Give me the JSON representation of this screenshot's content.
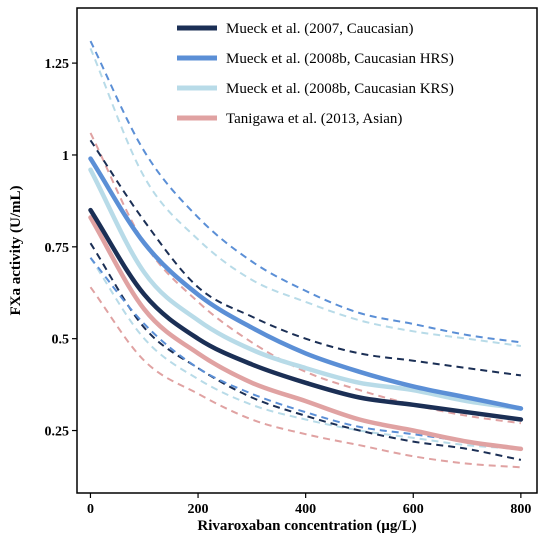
{
  "chart_data": {
    "type": "line",
    "title": "",
    "xlabel": "Rivaroxaban concentration (µg/L)",
    "ylabel": "FXa activity (U/mL)",
    "xlim": [
      -25,
      830
    ],
    "ylim": [
      0.08,
      1.4
    ],
    "xticks": [
      0,
      200,
      400,
      600,
      800
    ],
    "xtick_labels": [
      "0",
      "200",
      "400",
      "600",
      "800"
    ],
    "yticks": [
      0.25,
      0.5,
      0.75,
      1.0,
      1.25
    ],
    "ytick_labels": [
      "0.25",
      "0.5",
      "0.75",
      "1",
      "1.25"
    ],
    "grid": false,
    "legend_position": "top-right",
    "x": [
      0,
      100,
      200,
      300,
      400,
      500,
      600,
      700,
      800
    ],
    "series": [
      {
        "name": "Mueck et al. (2007, Caucasian)",
        "color": "#1b2f55",
        "values": [
          0.85,
          0.62,
          0.5,
          0.43,
          0.38,
          0.34,
          0.32,
          0.3,
          0.28
        ],
        "lower": [
          0.76,
          0.53,
          0.42,
          0.34,
          0.29,
          0.25,
          0.22,
          0.2,
          0.17
        ],
        "upper": [
          1.04,
          0.82,
          0.64,
          0.56,
          0.5,
          0.46,
          0.44,
          0.42,
          0.4
        ]
      },
      {
        "name": "Mueck et al. (2008b, Caucasian HRS)",
        "color": "#5b8fd6",
        "values": [
          0.99,
          0.76,
          0.62,
          0.53,
          0.46,
          0.41,
          0.37,
          0.34,
          0.31
        ],
        "lower": [
          0.72,
          0.54,
          0.42,
          0.35,
          0.3,
          0.26,
          0.24,
          0.22,
          0.2
        ],
        "upper": [
          1.31,
          1.01,
          0.83,
          0.71,
          0.63,
          0.57,
          0.54,
          0.51,
          0.49
        ]
      },
      {
        "name": "Mueck et al. (2008b, Caucasian KRS)",
        "color": "#b8dbe8",
        "values": [
          0.96,
          0.68,
          0.55,
          0.47,
          0.42,
          0.38,
          0.36,
          0.33,
          0.31
        ],
        "lower": [
          0.72,
          0.5,
          0.39,
          0.32,
          0.28,
          0.25,
          0.23,
          0.21,
          0.2
        ],
        "upper": [
          1.29,
          0.94,
          0.77,
          0.66,
          0.6,
          0.55,
          0.52,
          0.5,
          0.48
        ]
      },
      {
        "name": "Tanigawa et al. (2013, Asian)",
        "color": "#e0a2a2",
        "values": [
          0.83,
          0.58,
          0.46,
          0.38,
          0.33,
          0.28,
          0.25,
          0.22,
          0.2
        ],
        "lower": [
          0.64,
          0.44,
          0.35,
          0.28,
          0.24,
          0.21,
          0.18,
          0.16,
          0.15
        ],
        "upper": [
          1.06,
          0.76,
          0.6,
          0.49,
          0.41,
          0.36,
          0.32,
          0.29,
          0.27
        ]
      }
    ]
  }
}
